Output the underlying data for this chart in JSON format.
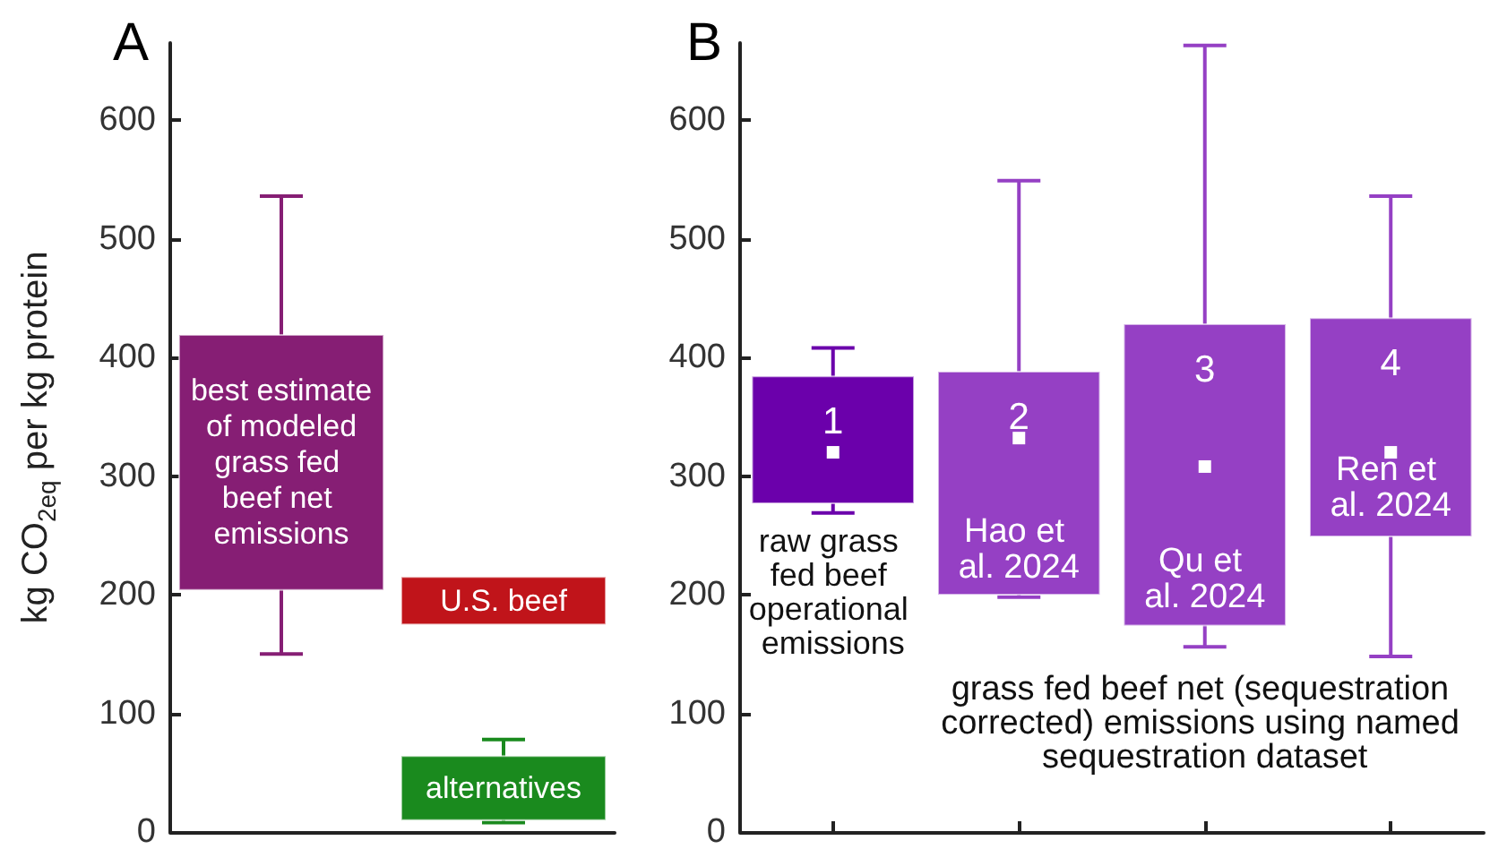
{
  "chart_data": [
    {
      "type": "bar",
      "title": "A",
      "ylabel": "kg CO$_{2eq}$ per kg protein",
      "categories": [
        null,
        null
      ],
      "ylim": [
        0,
        665
      ],
      "yticks": [
        0,
        100,
        200,
        300,
        400,
        500,
        600
      ],
      "tick_labels": "y",
      "series": [
        {
          "name": "best estimate of modeled grass fed beef net emissions",
          "color": "#861e74",
          "values": [
            215,
            null
          ],
          "base": [
            204,
            null
          ],
          "errors": [
            [
              150,
              536
            ],
            null
          ]
        },
        {
          "name": "U.S. beef",
          "color": "#c0141a",
          "values": [
            null,
            40
          ],
          "base": [
            null,
            175
          ]
        },
        {
          "name": "alternatives",
          "color": "#1a8a1e",
          "values": [
            null,
            54
          ],
          "base": [
            null,
            10
          ],
          "errors": [
            null,
            [
              8,
              78
            ]
          ]
        }
      ]
    },
    {
      "type": "bar",
      "title": "B",
      "categories": [
        "1",
        "2",
        "3",
        "4"
      ],
      "ylim": [
        0,
        665
      ],
      "yticks": [
        0,
        100,
        200,
        300,
        400,
        500,
        600
      ],
      "marker": "square",
      "annotations": [
        "raw grass fed beef operational emissions",
        {
          "text": "Hao et al. 2024",
          "x": "2",
          "y": 238
        },
        {
          "text": "Qu et al. 2024",
          "x": "3",
          "y": 213
        },
        {
          "text": "Ren et al. 2024",
          "x": "4",
          "y": 290
        },
        "grass fed beef net (sequestration corrected) emissions using named sequestration dataset"
      ],
      "series": [
        {
          "colors": [
            "#6b00ab",
            "#9540c4",
            "#9540c4",
            "#9540c4"
          ],
          "values": [
            107,
            188,
            254,
            184
          ],
          "base": [
            277,
            200,
            174,
            249
          ],
          "errors": [
            [
              269,
              408
            ],
            [
              198,
              549
            ],
            [
              156,
              663
            ],
            [
              148,
              536
            ]
          ]
        },
        {
          "type": "scatter",
          "x": [
            "1",
            "2",
            "3",
            "4"
          ],
          "values": [
            320,
            332,
            308,
            320
          ],
          "color": "#ffffff"
        }
      ]
    }
  ]
}
